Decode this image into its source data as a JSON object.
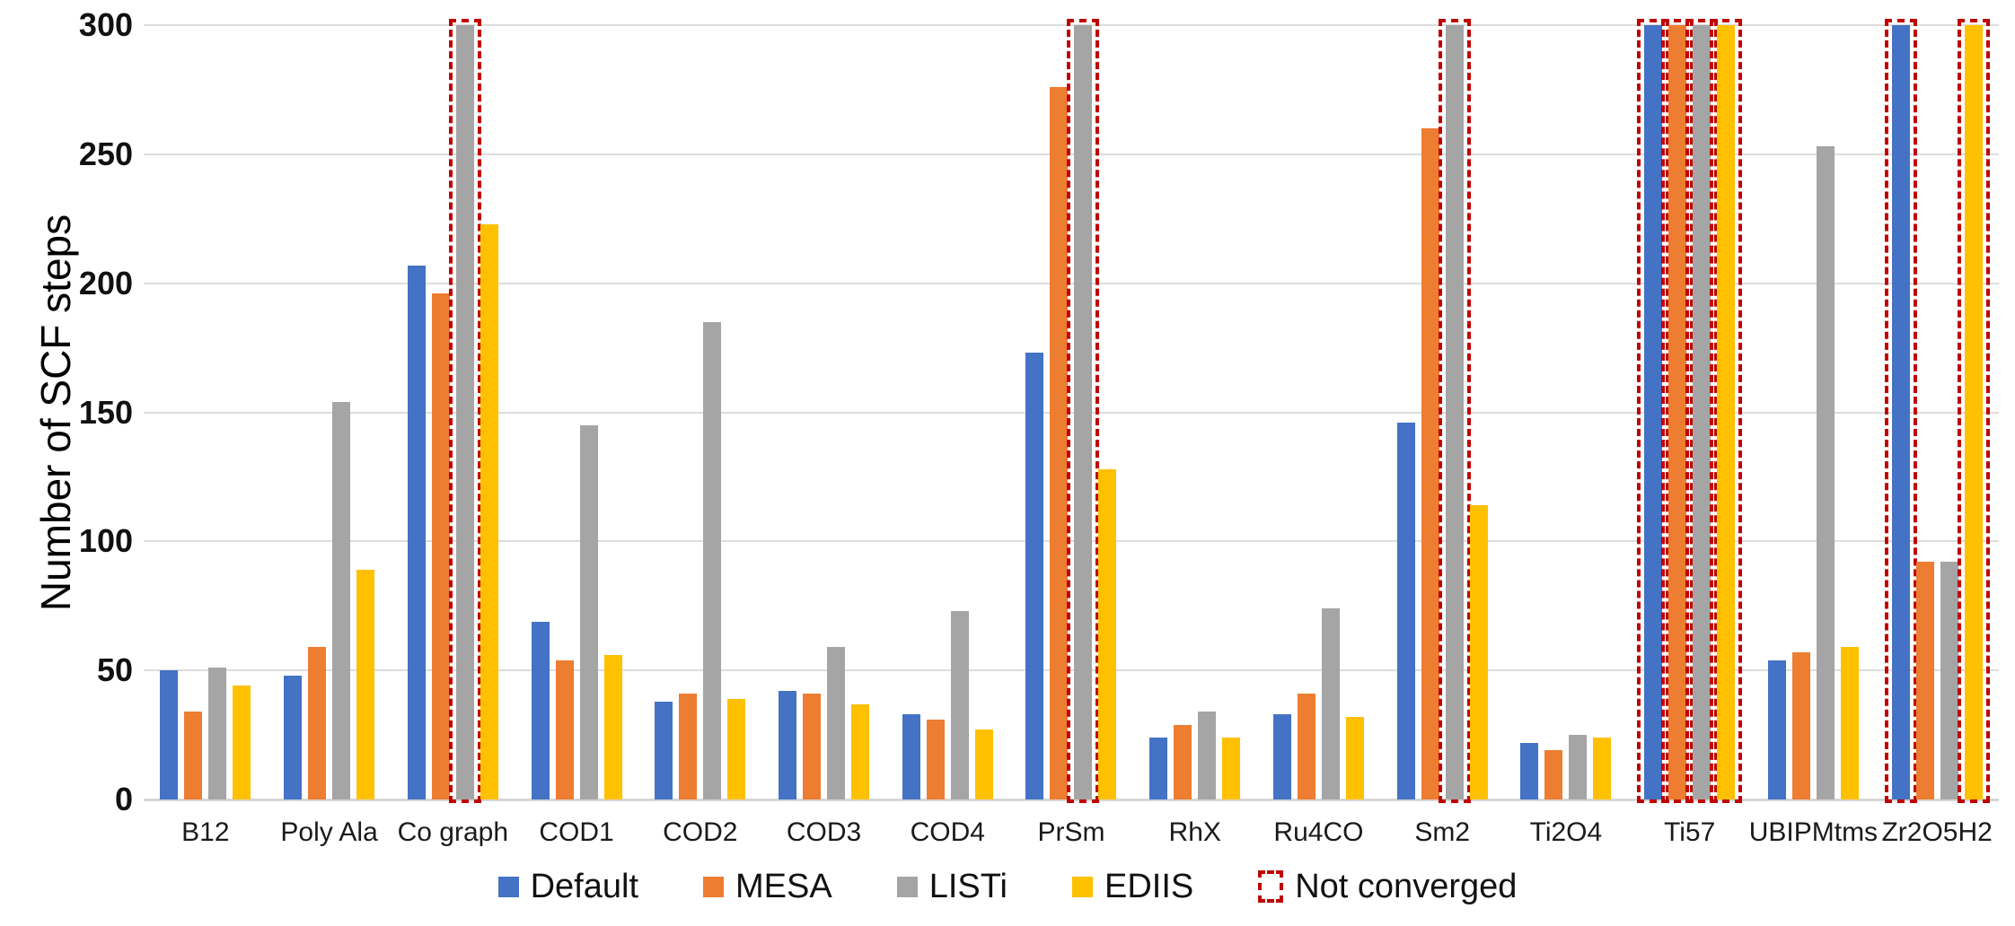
{
  "chart_data": {
    "type": "bar",
    "title": "",
    "ylabel": "Number of SCF steps",
    "xlabel": "",
    "ylim": [
      0,
      300
    ],
    "yticks": [
      0,
      50,
      100,
      150,
      200,
      250,
      300
    ],
    "grid": "horizontal",
    "legend_position": "bottom",
    "max_steps_cutoff": 300,
    "categories": [
      "B12",
      "Poly Ala",
      "Co graph",
      "COD1",
      "COD2",
      "COD3",
      "COD4",
      "PrSm",
      "RhX",
      "Ru4CO",
      "Sm2",
      "Ti2O4",
      "Ti57",
      "UBIPMtms",
      "Zr2O5H2"
    ],
    "series": [
      {
        "name": "Default",
        "color": "#4472C4",
        "values": [
          50,
          48,
          207,
          69,
          38,
          42,
          33,
          173,
          24,
          33,
          146,
          22,
          300,
          54,
          300
        ],
        "not_converged": [
          false,
          false,
          false,
          false,
          false,
          false,
          false,
          false,
          false,
          false,
          false,
          false,
          true,
          false,
          true
        ]
      },
      {
        "name": "MESA",
        "color": "#ED7D31",
        "values": [
          34,
          59,
          196,
          54,
          41,
          41,
          31,
          276,
          29,
          41,
          260,
          19,
          300,
          57,
          92
        ],
        "not_converged": [
          false,
          false,
          false,
          false,
          false,
          false,
          false,
          false,
          false,
          false,
          false,
          false,
          true,
          false,
          false
        ]
      },
      {
        "name": "LISTi",
        "color": "#A5A5A5",
        "values": [
          51,
          154,
          300,
          145,
          185,
          59,
          73,
          300,
          34,
          74,
          300,
          25,
          300,
          253,
          92
        ],
        "not_converged": [
          false,
          false,
          true,
          false,
          false,
          false,
          false,
          true,
          false,
          false,
          true,
          false,
          true,
          false,
          false
        ]
      },
      {
        "name": "EDIIS",
        "color": "#FFC000",
        "values": [
          44,
          89,
          223,
          56,
          39,
          37,
          27,
          128,
          24,
          32,
          114,
          24,
          300,
          59,
          300
        ],
        "not_converged": [
          false,
          false,
          false,
          false,
          false,
          false,
          false,
          false,
          false,
          false,
          false,
          false,
          true,
          false,
          true
        ]
      }
    ]
  },
  "legend_items": [
    {
      "label": "Default",
      "color": "#4472C4",
      "type": "fill"
    },
    {
      "label": "MESA",
      "color": "#ED7D31",
      "type": "fill"
    },
    {
      "label": "LISTi",
      "color": "#A5A5A5",
      "type": "fill"
    },
    {
      "label": "EDIIS",
      "color": "#FFC000",
      "type": "fill"
    },
    {
      "label": "Not converged",
      "color": "#C00000",
      "type": "dashed-outline"
    }
  ],
  "colors": {
    "background": "#FFFFFF",
    "gridline": "#DDDDDD",
    "axis_line": "#D6D6D6",
    "not_converged_outline": "#C00000",
    "text": "#111111"
  }
}
